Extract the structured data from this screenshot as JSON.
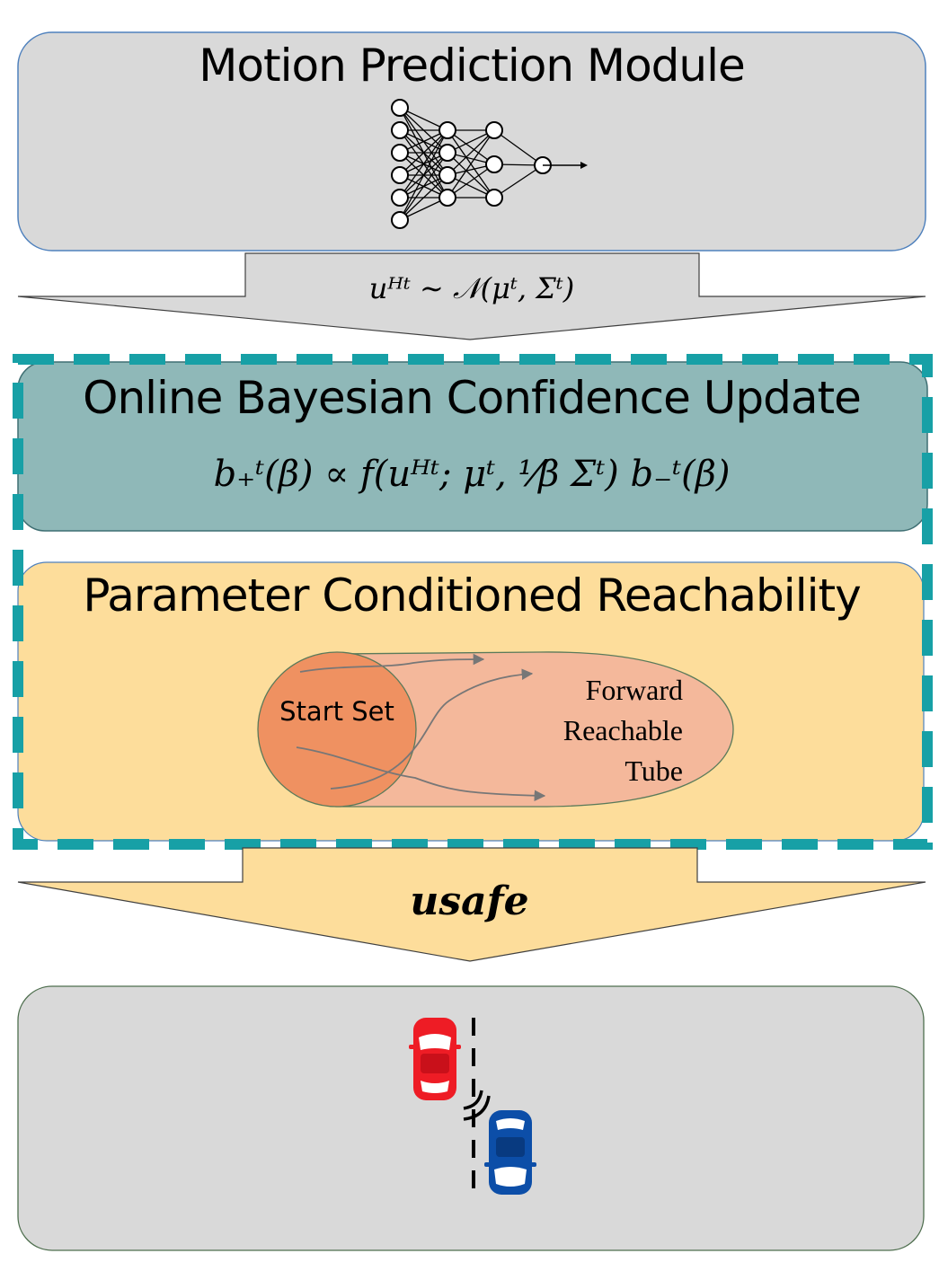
{
  "motion_module": {
    "title": "Motion Prediction Module",
    "icon": "neural-network-icon"
  },
  "prediction_arrow": {
    "formula": "u_H^t ~ N(μ^t, Σ^t)",
    "formula_display": "uᴴᵗ ∼ 𝒩(μᵗ, Σᵗ)"
  },
  "bayesian_update": {
    "title": "Online Bayesian Confidence Update",
    "formula": "b_+^t(β) ∝ f(u_H^t; μ^t, (1/β) Σ^t) b_-^t(β)",
    "formula_display": "b₊ᵗ(β) ∝ f(uᴴᵗ; μᵗ, ¹⁄β Σᵗ) b₋ᵗ(β)"
  },
  "reachability": {
    "title": "Parameter Conditioned Reachability",
    "start_set_label": "Start Set",
    "tube_label": "Forward Reachable Tube"
  },
  "safe_arrow": {
    "label": "u_safe",
    "label_display": "𝒖safe"
  },
  "scene": {
    "icons": [
      "red-car-icon",
      "blue-car-icon",
      "lane-divider-icon",
      "warning-signal-icon"
    ]
  },
  "colors": {
    "gray_box": "#d9d9d9",
    "teal_box": "#8fb8b8",
    "teal_dash": "#17a0a6",
    "yellow_box": "#fddd9b",
    "start_set": "#ef9161",
    "reachable_tube": "#f4b89b",
    "red_car": "#ee1c25",
    "blue_car": "#0c4ea8"
  }
}
